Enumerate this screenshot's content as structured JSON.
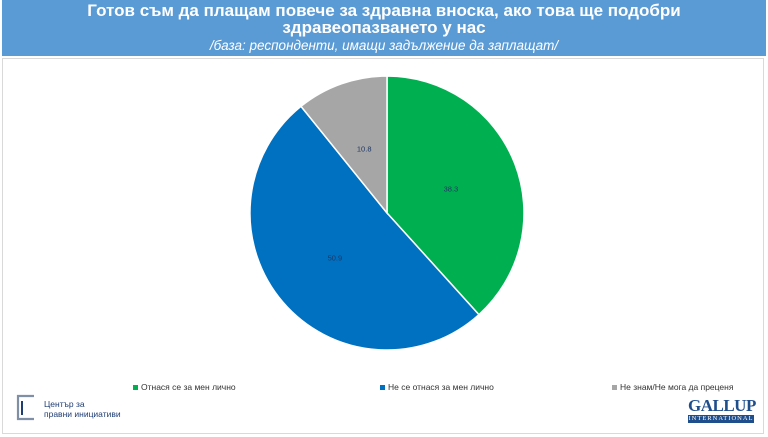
{
  "header": {
    "title_line1": "Готов съм да плащам повече за здравна вноска, ако това ще подобри",
    "title_line2": "здравеопазването у нас",
    "subtitle": "/база: респонденти, имащи задължение да заплащат/"
  },
  "chart_data": {
    "type": "pie",
    "title": "Готов съм да плащам повече за здравна вноска, ако това ще подобри здравеопазването у нас",
    "subtitle": "/база: респонденти, имащи задължение да заплащат/",
    "categories": [
      "Отнася се за мен лично",
      "Не се отнася за мен лично",
      "Не знам/Не мога да преценя"
    ],
    "values": [
      38.3,
      50.9,
      10.8
    ],
    "data_labels": [
      "38.3",
      "50.9",
      "10.8"
    ],
    "colors": [
      "#00b050",
      "#0070c0",
      "#a6a6a6"
    ],
    "start_angle_deg": 0,
    "direction": "clockwise",
    "legend_position": "bottom"
  },
  "logos": {
    "cpi_line1": "Център за",
    "cpi_line2": "правни инициативи",
    "gallup_name": "GALLUP",
    "gallup_sub": "INTERNATIONAL"
  }
}
